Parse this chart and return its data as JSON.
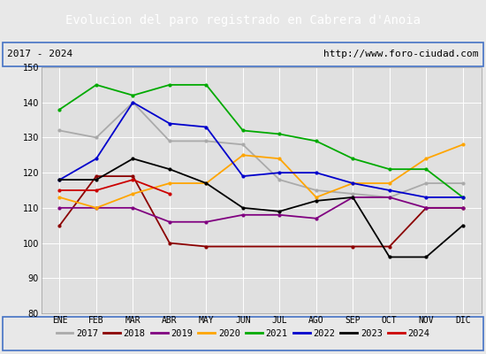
{
  "title": "Evolucion del paro registrado en Cabrera d'Anoia",
  "subtitle_left": "2017 - 2024",
  "subtitle_right": "http://www.foro-ciudad.com",
  "xlabel_ticks": [
    "ENE",
    "FEB",
    "MAR",
    "ABR",
    "MAY",
    "JUN",
    "JUL",
    "AGO",
    "SEP",
    "OCT",
    "NOV",
    "DIC"
  ],
  "ylim": [
    80,
    150
  ],
  "yticks": [
    80,
    90,
    100,
    110,
    120,
    130,
    140,
    150
  ],
  "series": {
    "2017": {
      "color": "#aaaaaa",
      "data": [
        132,
        130,
        140,
        129,
        129,
        128,
        118,
        115,
        114,
        113,
        117,
        117
      ]
    },
    "2018": {
      "color": "#8b0000",
      "data": [
        105,
        119,
        119,
        100,
        99,
        null,
        null,
        null,
        99,
        99,
        110,
        110
      ]
    },
    "2019": {
      "color": "#800080",
      "data": [
        110,
        110,
        110,
        106,
        106,
        108,
        108,
        107,
        113,
        113,
        110,
        110
      ]
    },
    "2020": {
      "color": "#ffa500",
      "data": [
        113,
        110,
        114,
        117,
        117,
        125,
        124,
        113,
        117,
        117,
        124,
        128
      ]
    },
    "2021": {
      "color": "#00aa00",
      "data": [
        138,
        145,
        142,
        145,
        145,
        132,
        131,
        129,
        124,
        121,
        121,
        113
      ]
    },
    "2022": {
      "color": "#0000cc",
      "data": [
        118,
        124,
        140,
        134,
        133,
        119,
        120,
        120,
        117,
        115,
        113,
        113
      ]
    },
    "2023": {
      "color": "#000000",
      "data": [
        118,
        118,
        124,
        121,
        117,
        110,
        109,
        112,
        113,
        96,
        96,
        105
      ]
    },
    "2024": {
      "color": "#cc0000",
      "data": [
        115,
        115,
        118,
        114,
        null,
        null,
        null,
        null,
        null,
        null,
        null,
        null
      ]
    }
  },
  "background_color": "#e8e8e8",
  "plot_bg_color": "#e0e0e0",
  "title_bg_color": "#4472c4",
  "title_color": "#ffffff",
  "border_color": "#4472c4",
  "grid_color": "#ffffff",
  "title_fontsize": 10,
  "tick_fontsize": 7,
  "legend_fontsize": 7.5
}
